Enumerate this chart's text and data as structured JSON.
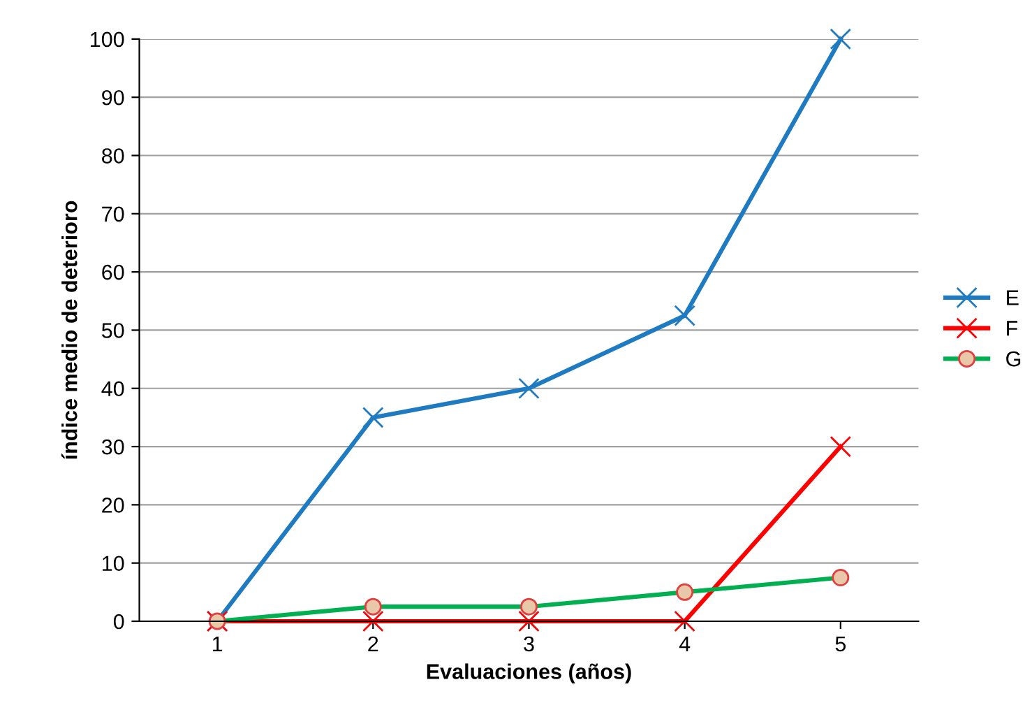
{
  "chart_data": {
    "type": "line",
    "xlabel": "Evaluaciones (años)",
    "ylabel": "índice medio de deterioro",
    "categories": [
      "1",
      "2",
      "3",
      "4",
      "5"
    ],
    "series": [
      {
        "name": "E",
        "color": "#1f7bc1",
        "marker": "cross",
        "values": [
          0,
          35,
          40,
          52.5,
          100
        ]
      },
      {
        "name": "F",
        "color": "#ff0000",
        "marker": "cross",
        "values": [
          0,
          0,
          0,
          0,
          30
        ]
      },
      {
        "name": "G",
        "color": "#00b050",
        "marker": "circle",
        "values": [
          0,
          2.5,
          2.5,
          5,
          7.5
        ]
      }
    ],
    "ylim": [
      0,
      100
    ],
    "yticks": [
      0,
      10,
      20,
      30,
      40,
      50,
      60,
      70,
      80,
      90,
      100
    ],
    "grid": "y",
    "legend": "right",
    "line_style": "solid"
  }
}
